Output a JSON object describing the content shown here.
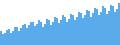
{
  "chart_data": {
    "type": "bar",
    "values": [
      18,
      14,
      16,
      20,
      21,
      16,
      19,
      24,
      24,
      19,
      22,
      27,
      28,
      22,
      26,
      31,
      31,
      25,
      28,
      33,
      30,
      24,
      28,
      34,
      33,
      27,
      31,
      37,
      36,
      29,
      33,
      39,
      37,
      30,
      34,
      41,
      40,
      33,
      37,
      44,
      42,
      35,
      39,
      46,
      45,
      37,
      42,
      49,
      47,
      39,
      43,
      51,
      49,
      41,
      45,
      53,
      51,
      43,
      47,
      55
    ],
    "color": "#5aabec",
    "ylim": [
      0,
      59.4
    ],
    "grid": false,
    "tick_labels": false
  }
}
